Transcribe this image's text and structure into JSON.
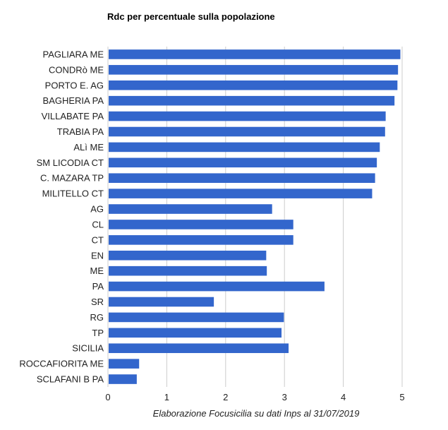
{
  "chart_data": {
    "type": "bar",
    "orientation": "horizontal",
    "title": "Rdc per percentuale sulla popolazione",
    "xlabel": "Elaborazione Focusicilia su dati Inps al 31/07/2019",
    "ylabel": "",
    "xlim": [
      0,
      5
    ],
    "ticks": [
      0,
      1,
      2,
      3,
      4,
      5
    ],
    "grid": true,
    "legend": "none",
    "bar_color": "#3366cc",
    "categories": [
      "PAGLIARA ME",
      "CONDRò ME",
      "PORTO E. AG",
      "BAGHERIA PA",
      "VILLABATE PA",
      "TRABIA PA",
      "ALì ME",
      "SM LICODIA CT",
      "C. MAZARA TP",
      "MILITELLO CT",
      "AG",
      "CL",
      "CT",
      "EN",
      "ME",
      "PA",
      "SR",
      "RG",
      "TP",
      "SICILIA",
      "ROCCAFIORITA ME",
      "SCLAFANI B PA"
    ],
    "values": [
      4.97,
      4.93,
      4.92,
      4.87,
      4.72,
      4.71,
      4.62,
      4.57,
      4.54,
      4.49,
      2.79,
      3.15,
      3.15,
      2.69,
      2.7,
      3.68,
      1.8,
      2.99,
      2.95,
      3.07,
      0.53,
      0.49
    ]
  }
}
